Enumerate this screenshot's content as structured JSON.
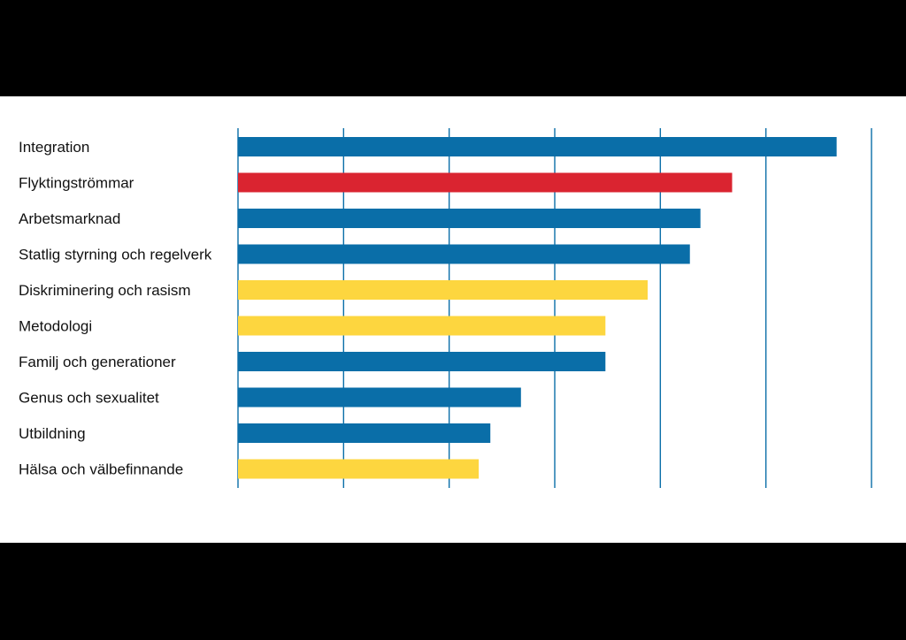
{
  "chart_data": {
    "type": "bar",
    "orientation": "horizontal",
    "categories": [
      "Integration",
      "Flyktingströmmar",
      "Arbetsmarknad",
      "Statlig styrning och regelverk",
      "Diskriminering och rasism",
      "Metodologi",
      "Familj och generationer",
      "Genus och sexualitet",
      "Utbildning",
      "Hälsa och välbefinnande"
    ],
    "values": [
      5.67,
      4.68,
      4.38,
      4.28,
      3.88,
      3.48,
      3.48,
      2.68,
      2.39,
      2.28
    ],
    "bar_colors": [
      "#0a6ea8",
      "#da2430",
      "#0a6ea8",
      "#0a6ea8",
      "#fdd63f",
      "#fdd63f",
      "#0a6ea8",
      "#0a6ea8",
      "#0a6ea8",
      "#fdd63f"
    ],
    "xlim": [
      0,
      6
    ],
    "gridlines": [
      0,
      1,
      2,
      3,
      4,
      5,
      6
    ],
    "grid": true,
    "grid_color": "#0a6ea8",
    "tick_labels_shown": false,
    "legend": "none"
  }
}
